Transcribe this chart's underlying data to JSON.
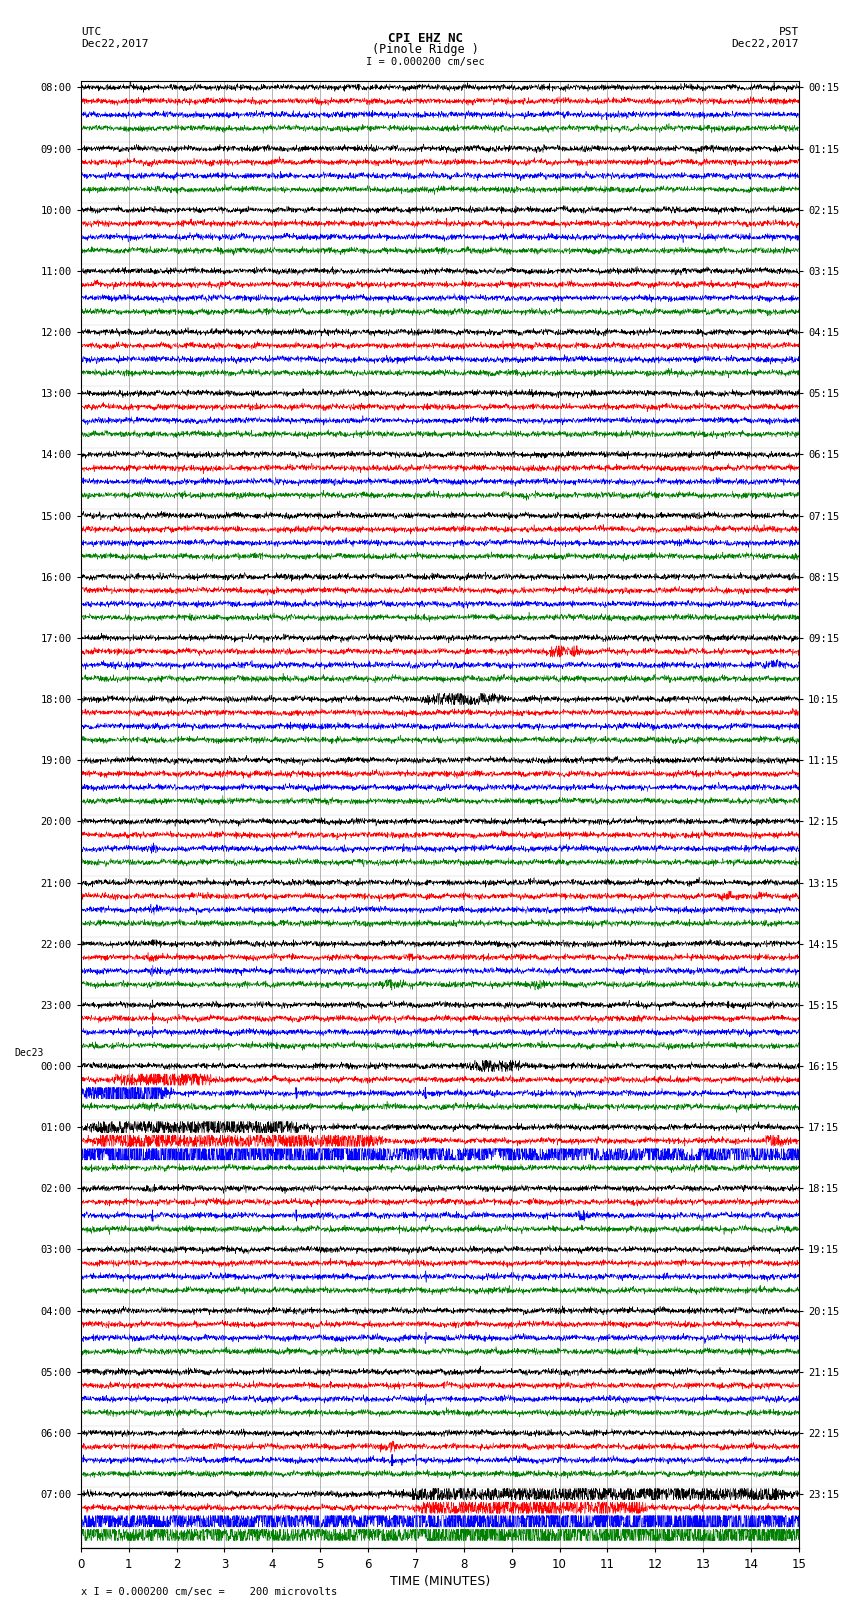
{
  "title_line1": "CPI EHZ NC",
  "title_line2": "(Pinole Ridge )",
  "title_line3": "I = 0.000200 cm/sec",
  "left_header_line1": "UTC",
  "left_header_line2": "Dec22,2017",
  "right_header_line1": "PST",
  "right_header_line2": "Dec22,2017",
  "xlabel": "TIME (MINUTES)",
  "footer_text": "x I = 0.000200 cm/sec =    200 microvolts",
  "utc_times": [
    "08:00",
    "09:00",
    "10:00",
    "11:00",
    "12:00",
    "13:00",
    "14:00",
    "15:00",
    "16:00",
    "17:00",
    "18:00",
    "19:00",
    "20:00",
    "21:00",
    "22:00",
    "23:00",
    "00:00",
    "01:00",
    "02:00",
    "03:00",
    "04:00",
    "05:00",
    "06:00",
    "07:00"
  ],
  "pst_times": [
    "00:15",
    "01:15",
    "02:15",
    "03:15",
    "04:15",
    "05:15",
    "06:15",
    "07:15",
    "08:15",
    "09:15",
    "10:15",
    "11:15",
    "12:15",
    "13:15",
    "14:15",
    "15:15",
    "16:15",
    "17:15",
    "18:15",
    "19:15",
    "20:15",
    "21:15",
    "22:15",
    "23:15"
  ],
  "num_rows": 24,
  "traces_per_row": 4,
  "colors": [
    "black",
    "red",
    "blue",
    "green"
  ],
  "bg_color": "#ffffff",
  "grid_color": "#999999",
  "x_min": 0,
  "x_max": 15,
  "x_ticks": [
    0,
    1,
    2,
    3,
    4,
    5,
    6,
    7,
    8,
    9,
    10,
    11,
    12,
    13,
    14,
    15
  ],
  "seed": 42,
  "dec23_row": 16
}
